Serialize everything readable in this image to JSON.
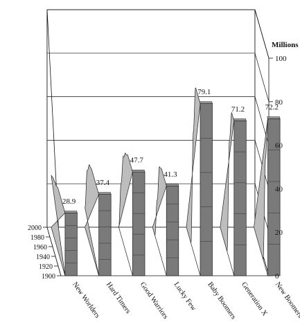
{
  "chart_data": {
    "type": "area",
    "title": "",
    "zlabel": "Millions",
    "zlim": [
      0,
      100
    ],
    "z_ticks": [
      0,
      20,
      40,
      60,
      80,
      100
    ],
    "depth_axis_ticks": [
      1900,
      1920,
      1940,
      1960,
      1980,
      2000
    ],
    "categories": [
      "New Worlders",
      "Hard Timers",
      "Good Warriors",
      "Lucky Few",
      "Baby Boomers",
      "Generation X",
      "New Boomers"
    ],
    "peak_labels": [
      "28.9",
      "37.4",
      "47.7",
      "41.3",
      "79.1",
      "71.2",
      "72.2"
    ],
    "series": [
      {
        "name": "New Worlders",
        "values": [
          24.0,
          26.0,
          27.0,
          28.9,
          28.9,
          28.9,
          28.9
        ]
      },
      {
        "name": "Hard Timers",
        "values": [
          9.0,
          30.0,
          36.0,
          37.4,
          37.4,
          37.4,
          37.4
        ]
      },
      {
        "name": "Good Warriors",
        "values": [
          0,
          24.0,
          40.0,
          45.0,
          47.7,
          47.7,
          47.7
        ]
      },
      {
        "name": "Lucky Few",
        "values": [
          0,
          0,
          20.0,
          39.0,
          41.3,
          41.3,
          41.3
        ]
      },
      {
        "name": "Baby Boomers",
        "values": [
          0,
          0,
          0,
          55.0,
          79.1,
          79.1,
          79.1
        ]
      },
      {
        "name": "Generation X",
        "values": [
          0,
          0,
          0,
          0,
          55.0,
          71.2,
          71.2
        ]
      },
      {
        "name": "New Boomers",
        "values": [
          0,
          0,
          0,
          0,
          0,
          50.0,
          72.2
        ]
      }
    ],
    "grid": true,
    "colors": {
      "front": "#7a7a7a",
      "top": "#bdbdbd",
      "wall": "#ffffff",
      "grid": "#111111"
    }
  }
}
